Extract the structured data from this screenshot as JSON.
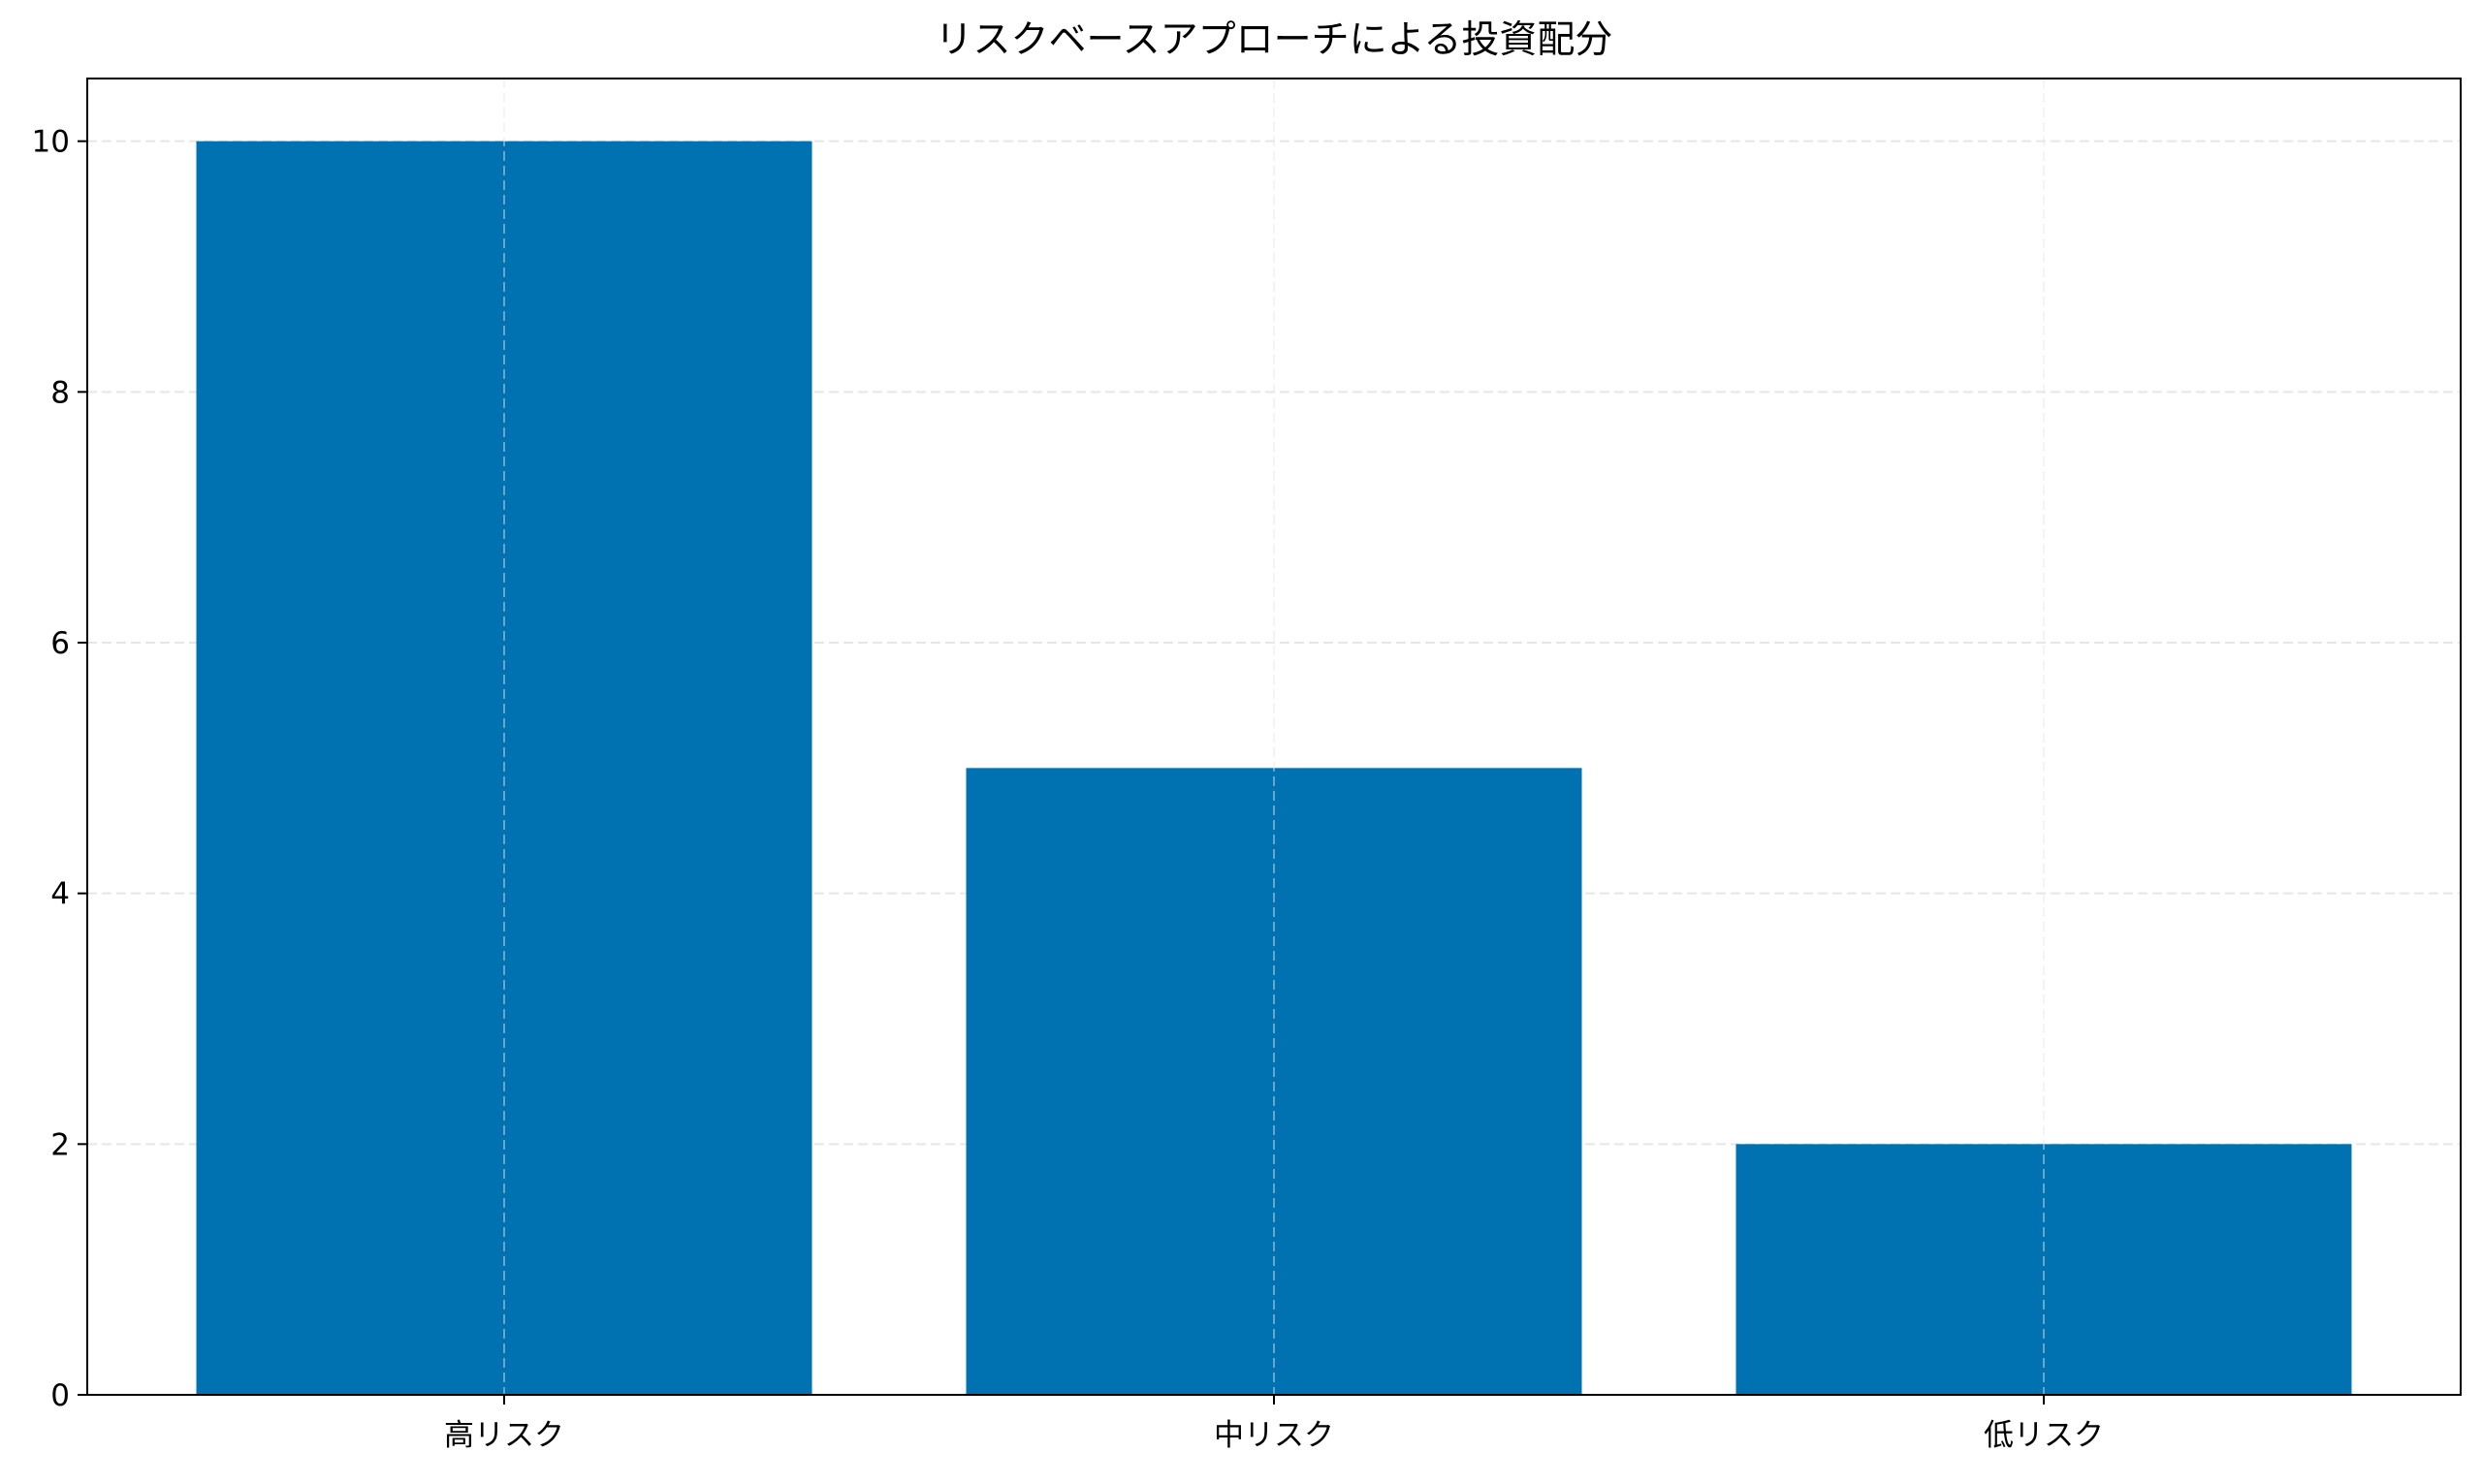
{
  "chart_data": {
    "type": "bar",
    "title": "リスクベースアプローチによる投資配分",
    "xlabel": "",
    "ylabel": "",
    "categories": [
      "高リスク",
      "中リスク",
      "低リスク"
    ],
    "values": [
      10,
      5,
      2
    ],
    "ylim": [
      0,
      10.5
    ],
    "yticks": [
      0,
      2,
      4,
      6,
      8,
      10
    ],
    "grid": true,
    "legend": "none",
    "bar_color": "#0072b2",
    "grid_color": "#e6e6e6"
  }
}
